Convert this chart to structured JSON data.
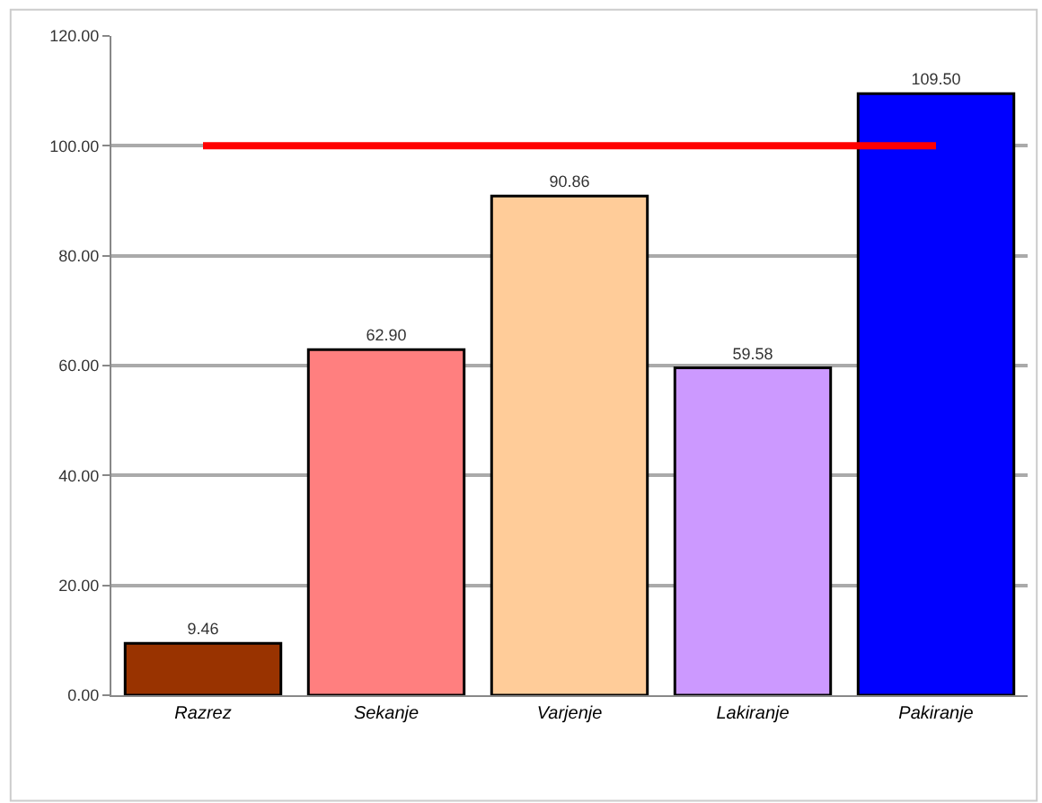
{
  "chart_data": {
    "type": "bar",
    "categories": [
      "Razrez",
      "Sekanje",
      "Varjenje",
      "Lakiranje",
      "Pakiranje"
    ],
    "values": [
      9.46,
      62.9,
      90.86,
      59.58,
      109.5
    ],
    "colors": [
      "#993300",
      "#ff7f7f",
      "#ffcc99",
      "#cc99ff",
      "#0000ff"
    ],
    "value_labels": [
      "9.46",
      "62.90",
      "90.86",
      "59.58",
      "109.50"
    ],
    "ylim": [
      0,
      120
    ],
    "yticks": [
      {
        "value": 0,
        "label": "0.00"
      },
      {
        "value": 20,
        "label": "20.00"
      },
      {
        "value": 40,
        "label": "40.00"
      },
      {
        "value": 60,
        "label": "60.00"
      },
      {
        "value": 80,
        "label": "80.00"
      },
      {
        "value": 100,
        "label": "100.00"
      },
      {
        "value": 120,
        "label": "120.00"
      }
    ],
    "ref_lines": [
      {
        "axis": "y",
        "value": 100,
        "color": "#ff0000"
      }
    ],
    "grid": "y"
  }
}
